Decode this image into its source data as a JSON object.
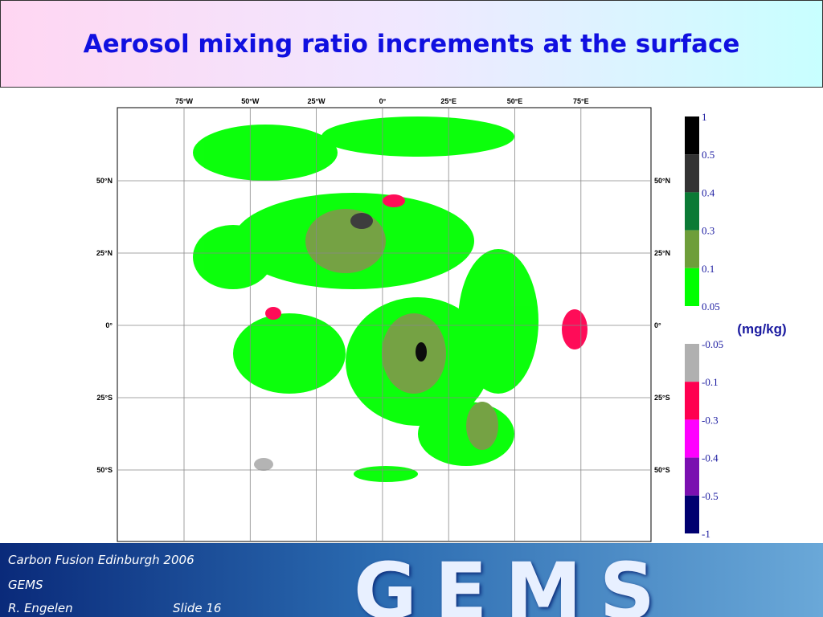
{
  "title": "Aerosol mixing ratio increments at the surface",
  "map": {
    "lon_labels": [
      "75°W",
      "50°W",
      "25°W",
      "0°",
      "25°E",
      "50°E",
      "75°E"
    ],
    "lat_labels": [
      "50°N",
      "25°N",
      "0°",
      "25°S",
      "50°S"
    ]
  },
  "colorbar": {
    "positive": {
      "levels": [
        1,
        0.5,
        0.4,
        0.3,
        0.1,
        0.05
      ],
      "colors": [
        "#000000",
        "#333333",
        "#0b7a35",
        "#6e9e3a",
        "#00ff00"
      ]
    },
    "negative": {
      "levels": [
        -0.05,
        -0.1,
        -0.3,
        -0.4,
        -0.5,
        -1
      ],
      "colors": [
        "#b0b0b0",
        "#ff0050",
        "#ff00ff",
        "#7a10b0",
        "#000070"
      ]
    },
    "unit": "(mg/kg)"
  },
  "footer": {
    "event": "Carbon Fusion Edinburgh 2006",
    "project": "GEMS",
    "author": "R. Engelen",
    "slide": "Slide 16",
    "logo": "GEMS"
  }
}
